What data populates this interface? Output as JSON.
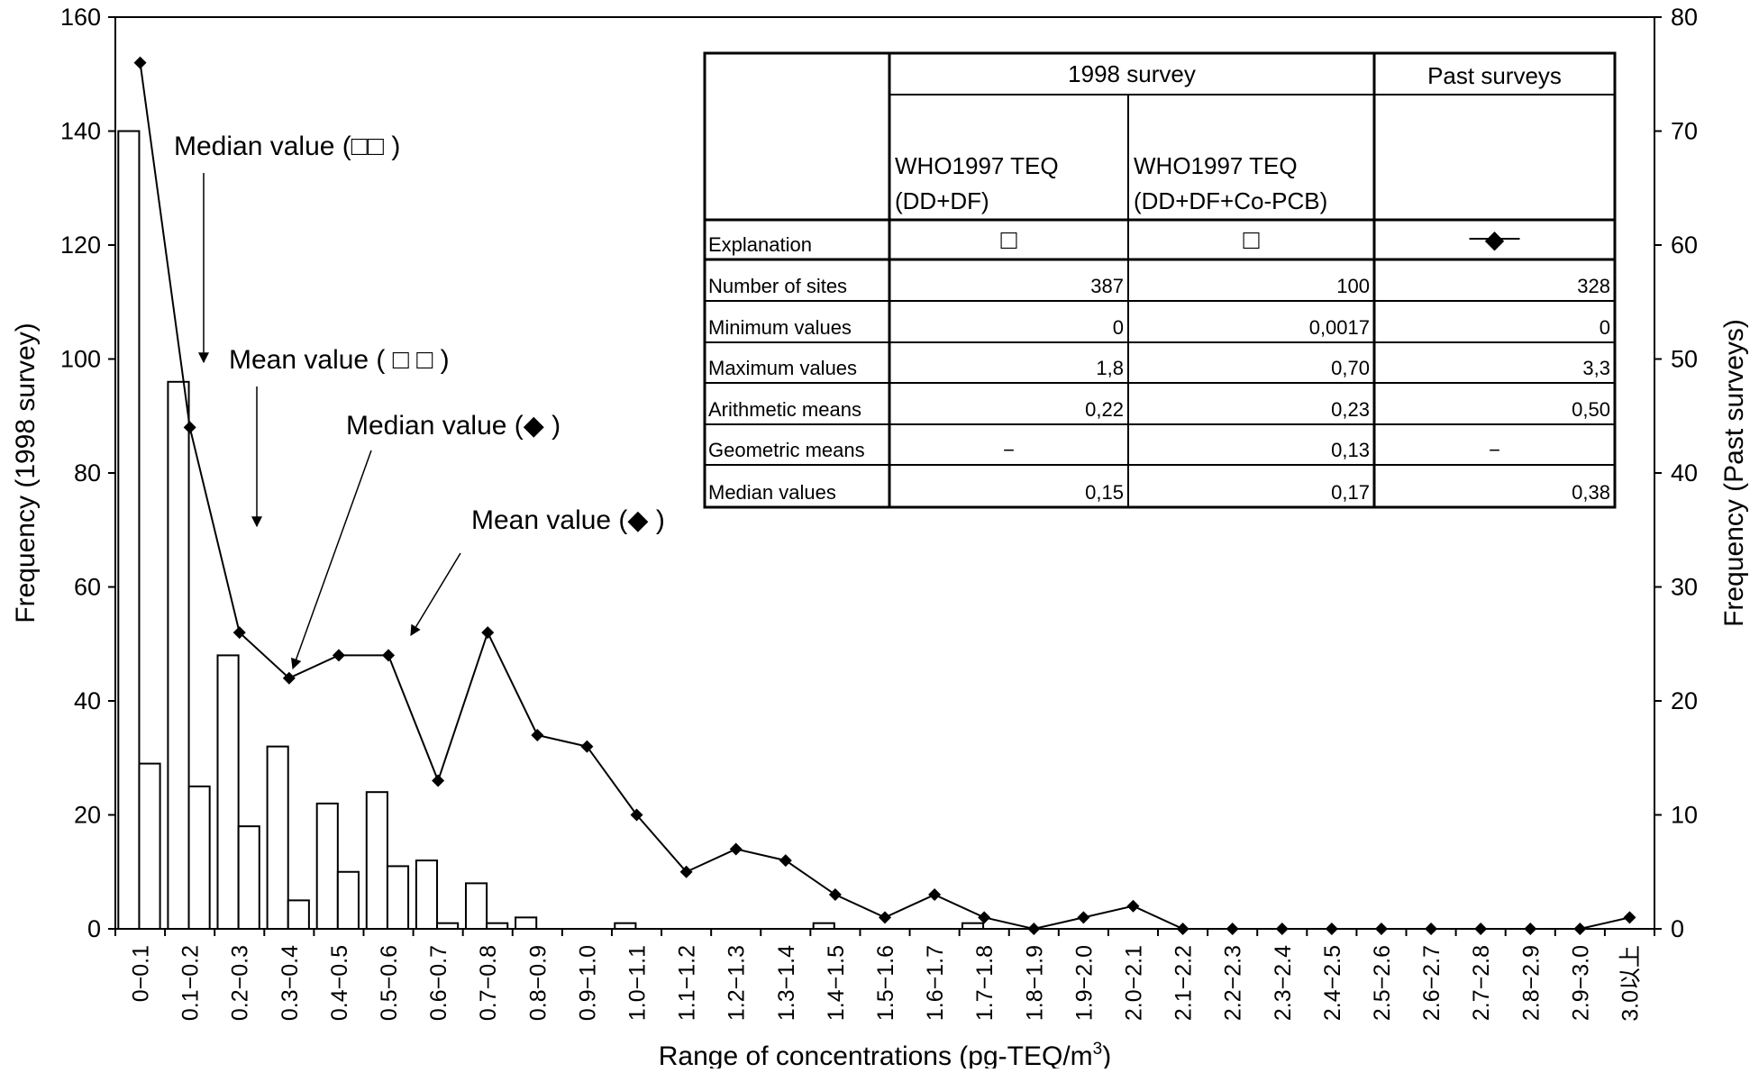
{
  "chart_data": {
    "type": "bar",
    "xlabel": "Range of concentrations (pg-TEQ/m",
    "xlabel_sup": "3",
    "xlabel_end": ")",
    "ylabel_left": "Frequency (1998 survey)",
    "ylabel_right": "Frequency (Past surveys)",
    "ylim_left": [
      0,
      160
    ],
    "ylim_right": [
      0,
      80
    ],
    "yticks_left": [
      0,
      20,
      40,
      60,
      80,
      100,
      120,
      140,
      160
    ],
    "yticks_right": [
      0,
      10,
      20,
      30,
      40,
      50,
      60,
      70,
      80
    ],
    "categories": [
      "0−0.1",
      "0.1−0.2",
      "0.2−0.3",
      "0.3−0.4",
      "0.4−0.5",
      "0.5−0.6",
      "0.6−0.7",
      "0.7−0.8",
      "0.8−0.9",
      "0.9−1.0",
      "1.0−1.1",
      "1.1−1.2",
      "1.2−1.3",
      "1.3−1.4",
      "1.4−1.5",
      "1.5−1.6",
      "1.6−1.7",
      "1.7−1.8",
      "1.8−1.9",
      "1.9−2.0",
      "2.0−2.1",
      "2.1−2.2",
      "2.2−2.3",
      "2.3−2.4",
      "2.4−2.5",
      "2.5−2.6",
      "2.6−2.7",
      "2.7−2.8",
      "2.8−2.9",
      "2.9−3.0",
      "3.0以上"
    ],
    "series": [
      {
        "name": "WHO1997 TEQ (DD+DF)",
        "kind": "bar",
        "axis": "left",
        "values": [
          140,
          96,
          48,
          32,
          22,
          24,
          12,
          8,
          2,
          0,
          1,
          0,
          0,
          0,
          1,
          0,
          0,
          1,
          0,
          0,
          0,
          0,
          0,
          0,
          0,
          0,
          0,
          0,
          0,
          0,
          0
        ]
      },
      {
        "name": "WHO1997 TEQ (DD+DF+Co-PCB)",
        "kind": "bar",
        "axis": "left",
        "values": [
          29,
          25,
          18,
          5,
          10,
          11,
          1,
          1,
          0,
          0,
          0,
          0,
          0,
          0,
          0,
          0,
          0,
          0,
          0,
          0,
          0,
          0,
          0,
          0,
          0,
          0,
          0,
          0,
          0,
          0,
          0
        ]
      },
      {
        "name": "Past surveys",
        "kind": "line",
        "axis": "right",
        "marker": "diamond",
        "values": [
          76,
          44,
          26,
          22,
          24,
          24,
          13,
          26,
          17,
          16,
          10,
          5,
          7,
          6,
          3,
          1,
          3,
          1,
          0,
          1,
          2,
          0,
          0,
          0,
          0,
          0,
          0,
          0,
          0,
          0,
          1
        ]
      }
    ],
    "annotations": [
      {
        "text": "Median value (□□ )",
        "arrow_target": {
          "category": "0.2−0.3",
          "side": "left",
          "y_right": 50
        }
      },
      {
        "text": "Mean value ( □ □ )",
        "arrow_target": {
          "category": "0.3−0.4",
          "side": "left",
          "y_right": 35
        }
      },
      {
        "text": "Median value (◆ )",
        "arrow_target": {
          "category": "0.3−0.4",
          "side": "center",
          "y_right": 23
        }
      },
      {
        "text": "Mean value (◆ )",
        "arrow_target": {
          "category": "0.6−0.7",
          "side": "left",
          "y_right": 25
        }
      }
    ],
    "table": {
      "group_1998": "1998 survey",
      "group_past": "Past surveys",
      "col1": [
        "WHO1997 TEQ",
        "(DD+DF)"
      ],
      "col2": [
        "WHO1997 TEQ",
        "(DD+DF+Co-PCB)"
      ],
      "explanation_label": "Explanation",
      "explanation_symbols": [
        "□",
        "□",
        "◆"
      ],
      "rows": [
        {
          "label": "Number of sites",
          "values": [
            "387",
            "100",
            "328"
          ]
        },
        {
          "label": "Minimum values",
          "values": [
            "0",
            "0,0017",
            "0"
          ]
        },
        {
          "label": "Maximum values",
          "values": [
            "1,8",
            "0,70",
            "3,3"
          ]
        },
        {
          "label": "Arithmetic means",
          "values": [
            "0,22",
            "0,23",
            "0,50"
          ]
        },
        {
          "label": "Geometric means",
          "values": [
            "−",
            "0,13",
            "−"
          ]
        },
        {
          "label": "Median values",
          "values": [
            "0,15",
            "0,17",
            "0,38"
          ]
        }
      ]
    }
  }
}
